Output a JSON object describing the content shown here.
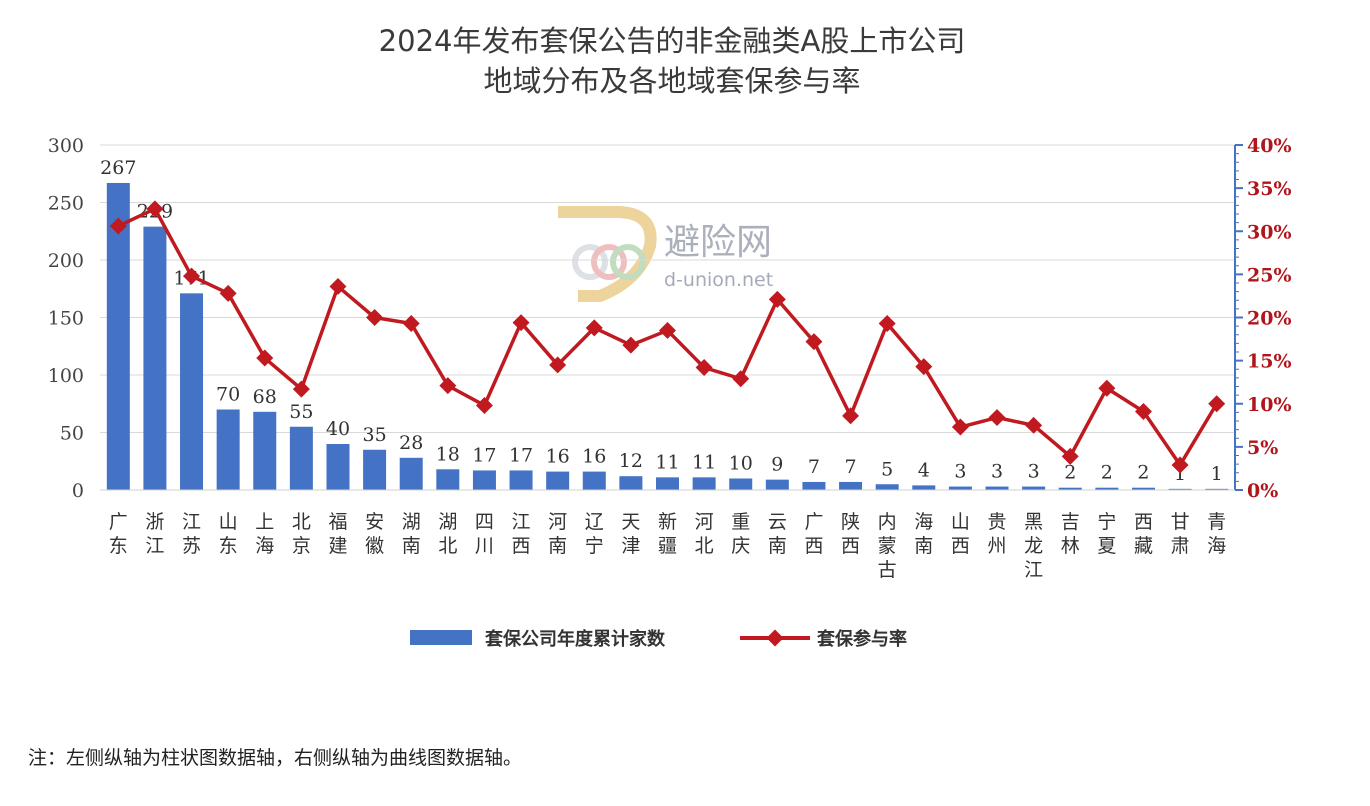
{
  "chart_data": {
    "type": "bar+line",
    "title_lines": [
      "2024年发布套保公告的非金融类A股上市公司",
      "地域分布及各地域套保参与率"
    ],
    "categories": [
      "广东",
      "浙江",
      "江苏",
      "山东",
      "上海",
      "北京",
      "福建",
      "安徽",
      "湖南",
      "湖北",
      "四川",
      "江西",
      "河南",
      "辽宁",
      "天津",
      "新疆",
      "河北",
      "重庆",
      "云南",
      "广西",
      "陕西",
      "内蒙古",
      "海南",
      "山西",
      "贵州",
      "黑龙江",
      "吉林",
      "宁夏",
      "西藏",
      "甘肃",
      "青海"
    ],
    "series": [
      {
        "name": "套保公司年度累计家数",
        "type": "bar",
        "axis": "left",
        "color": "#4472c4",
        "values": [
          267,
          229,
          171,
          70,
          68,
          55,
          40,
          35,
          28,
          18,
          17,
          17,
          16,
          16,
          12,
          11,
          11,
          10,
          9,
          7,
          7,
          5,
          4,
          3,
          3,
          3,
          2,
          2,
          2,
          1,
          1
        ]
      },
      {
        "name": "套保参与率",
        "type": "line",
        "axis": "right",
        "color": "#c0191f",
        "values": [
          30.6,
          32.6,
          24.8,
          22.8,
          15.3,
          11.7,
          23.6,
          20.0,
          19.3,
          12.1,
          9.8,
          19.4,
          14.5,
          18.8,
          16.8,
          18.5,
          14.2,
          12.9,
          22.1,
          17.2,
          8.6,
          19.3,
          14.3,
          7.3,
          8.4,
          7.5,
          3.9,
          11.8,
          9.1,
          2.9,
          10.0
        ]
      }
    ],
    "y_left": {
      "min": 0,
      "max": 300,
      "step": 50
    },
    "y_right": {
      "min": 0,
      "max": 40,
      "step": 5,
      "unit": "%"
    },
    "legend_position": "bottom",
    "note": "注：左侧纵轴为柱状图数据轴，右侧纵轴为曲线图数据轴。"
  },
  "watermark": {
    "brand": "避险网",
    "url": "d-union.net"
  }
}
